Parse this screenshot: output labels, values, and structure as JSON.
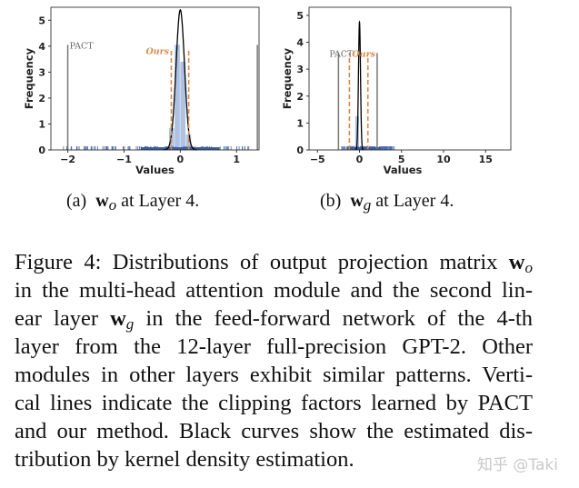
{
  "chart_data": [
    {
      "type": "bar",
      "panel": "a",
      "xlabel": "Values",
      "ylabel": "Frequency",
      "xlim": [
        -2.3,
        1.4
      ],
      "ylim": [
        0,
        5.5
      ],
      "xticks": [
        "-2",
        "-1",
        "0",
        "1"
      ],
      "xtick_values": [
        -2,
        -1,
        0,
        1
      ],
      "yticks": [
        "0",
        "1",
        "2",
        "3",
        "4",
        "5"
      ],
      "histogram": {
        "bin_edges": [
          -0.3,
          -0.2,
          -0.1,
          0.0,
          0.1,
          0.2,
          0.3
        ],
        "values": [
          0.1,
          0.85,
          4.05,
          3.4,
          0.6,
          0.1
        ],
        "color": "#aec3e3"
      },
      "kde": {
        "peak": 5.4,
        "center": 0.0,
        "bandwidth": 0.075,
        "color": "#000000"
      },
      "pact": {
        "label": "PACT",
        "values": [
          -2.0,
          1.37
        ],
        "height": 4.05,
        "color": "#777777"
      },
      "ours": {
        "label": "Ours",
        "values": [
          -0.16,
          0.15
        ],
        "height": 3.9,
        "color": "#d9874a"
      },
      "rug_range": [
        -2.1,
        1.25
      ]
    },
    {
      "type": "bar",
      "panel": "b",
      "xlabel": "Values",
      "ylabel": "Frequency",
      "xlim": [
        -6,
        18
      ],
      "ylim": [
        0,
        5.3
      ],
      "xticks": [
        "-5",
        "0",
        "5",
        "10",
        "15"
      ],
      "xtick_values": [
        -5,
        0,
        5,
        10,
        15
      ],
      "yticks": [
        "0",
        "1",
        "2",
        "3",
        "4",
        "5"
      ],
      "histogram": {
        "bin_edges": [
          -2,
          -1,
          -0.5,
          0,
          0.5,
          1,
          2
        ],
        "values": [
          0.1,
          0.15,
          1.25,
          0.15,
          0.1,
          0.05
        ],
        "color": "#aec3e3"
      },
      "kde": {
        "peak": 4.75,
        "center": 0.0,
        "bandwidth": 0.12,
        "color": "#000000"
      },
      "pact": {
        "label": "PACT",
        "values": [
          -2.5,
          2.1
        ],
        "height": 3.6,
        "color": "#777777"
      },
      "ours": {
        "label": "Ours",
        "values": [
          -1.2,
          1.0
        ],
        "height": 3.6,
        "color": "#d9874a"
      },
      "rug_range": [
        -2.2,
        4.2
      ]
    }
  ],
  "subcaptions": {
    "a": {
      "prefix": "(a)",
      "symbol": "w",
      "subscript": "o",
      "suffix": "at Layer 4."
    },
    "b": {
      "prefix": "(b)",
      "symbol": "w",
      "subscript": "g",
      "suffix": "at Layer 4."
    }
  },
  "caption": {
    "l1a": "Figure 4: Distributions of output projection matrix",
    "l1w": "w",
    "l1s": "o",
    "l2": "in the multi-head attention module and the second lin-",
    "l3a": "ear layer",
    "l3w": "w",
    "l3s": "g",
    "l3b": "in the feed-forward network of the 4-th",
    "l4": "layer from the 12-layer full-precision GPT-2.  Other",
    "l5": "modules in other layers exhibit similar patterns. Verti-",
    "l6": "cal lines indicate the clipping factors learned by PACT",
    "l7": "and our method. Black curves show the estimated dis-",
    "l8": "tribution by kernel density estimation."
  },
  "watermark": "知乎 @Taki"
}
